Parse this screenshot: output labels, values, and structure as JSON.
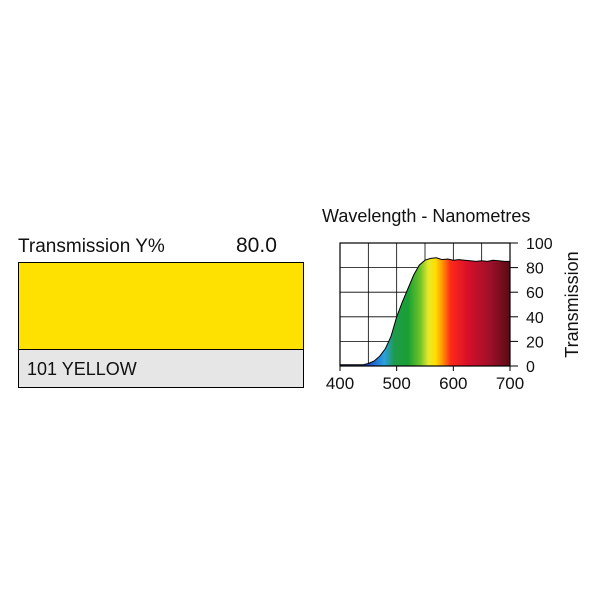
{
  "filter": {
    "transmission_label": "Transmission Y%",
    "transmission_value": "80.0",
    "name": "101 YELLOW",
    "swatch_color": "#ffe100"
  },
  "chart_data": {
    "type": "area",
    "title": "Wavelength - Nanometres",
    "xlabel": "Wavelength - Nanometres",
    "ylabel": "Transmission",
    "xlim": [
      400,
      700
    ],
    "ylim": [
      0,
      100
    ],
    "x_ticks": [
      400,
      500,
      600,
      700
    ],
    "y_ticks": [
      0,
      20,
      40,
      60,
      80,
      100
    ],
    "grid": true,
    "x": [
      400,
      420,
      440,
      450,
      460,
      470,
      480,
      490,
      500,
      510,
      520,
      530,
      540,
      550,
      560,
      570,
      580,
      590,
      600,
      610,
      620,
      630,
      640,
      650,
      660,
      670,
      680,
      690,
      700
    ],
    "y": [
      1,
      1,
      1,
      2,
      4,
      8,
      14,
      24,
      40,
      52,
      63,
      74,
      82,
      86,
      87.5,
      88,
      86.5,
      87,
      86,
      86.5,
      86,
      85.5,
      85,
      85.5,
      85,
      86,
      85.5,
      85,
      85
    ]
  }
}
